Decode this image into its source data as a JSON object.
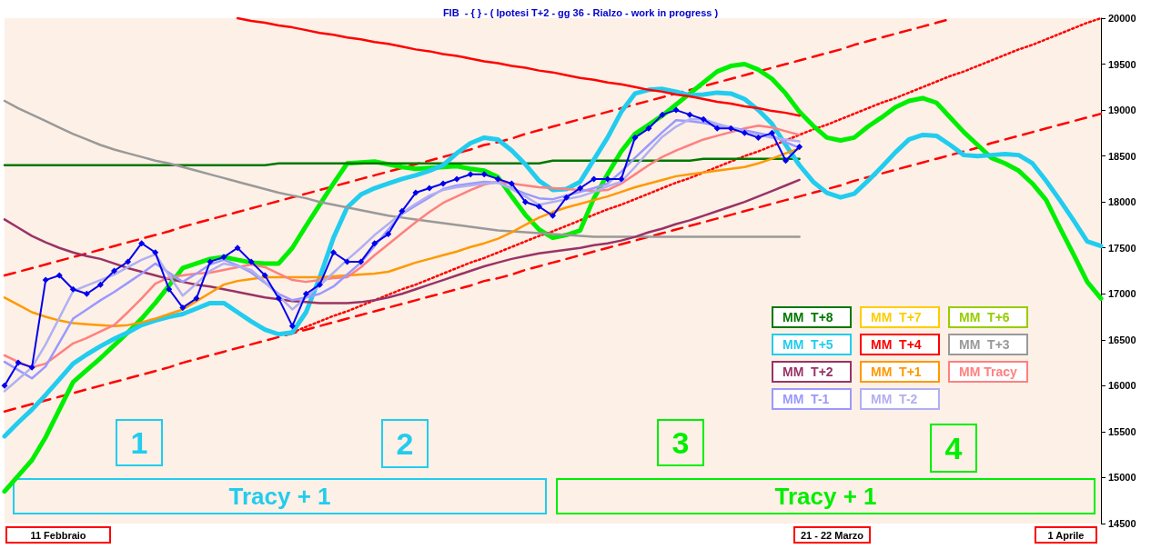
{
  "chart_data": {
    "type": "line",
    "title": "FIB  - { } - ( Ipotesi T+2 - gg 36 - Rialzo - work in progress )",
    "categories": [
      null,
      null,
      null,
      null,
      null,
      null,
      null,
      null,
      null,
      null,
      null,
      null,
      null,
      null,
      null,
      null,
      null,
      null,
      null,
      null,
      null,
      null,
      null,
      null,
      null,
      null,
      null,
      null,
      null,
      null,
      null,
      null,
      null,
      null,
      null,
      null,
      null,
      null,
      null,
      null,
      null,
      null,
      null,
      null,
      null,
      null,
      null,
      null,
      null,
      null,
      null,
      null,
      null,
      null,
      null,
      null,
      null,
      null,
      null,
      null,
      null,
      null,
      null,
      null,
      null,
      null,
      null,
      null,
      null,
      null,
      null,
      null,
      null,
      null,
      null,
      null,
      null,
      null,
      null,
      null,
      null
    ],
    "ylim": [
      14500,
      20000
    ],
    "yticks": [
      14500,
      15000,
      15500,
      16000,
      16500,
      17000,
      17500,
      18000,
      18500,
      19000,
      19500,
      20000
    ],
    "grid": false,
    "legend": "bottom right",
    "marker": "none",
    "line_style": "solid",
    "series": [
      {
        "color": "#0000ee",
        "marker": "diamond",
        "values": [
          16000,
          16250,
          16200,
          17150,
          17200,
          17050,
          17000,
          17100,
          17250,
          17350,
          17550,
          17450,
          17050,
          16850,
          16950,
          17350,
          17400,
          17500,
          17350,
          17200,
          16950,
          16650,
          17000,
          17100,
          17450,
          17350,
          17350,
          17550,
          17650,
          17900,
          18100,
          18150,
          18200,
          18250,
          18300,
          18300,
          18250,
          18200,
          18000,
          17950,
          17850,
          18050,
          18150,
          18250,
          18250,
          18250,
          18700,
          18800,
          18950,
          19000,
          18950,
          18900,
          18800,
          18800,
          18750,
          18700,
          18750,
          18450,
          18600,
          null,
          null,
          null,
          null,
          null,
          null,
          null,
          null,
          null,
          null,
          null,
          null,
          null,
          null,
          null,
          null,
          null,
          null,
          null,
          null,
          null,
          null
        ]
      },
      {
        "color": "#ff0000",
        "line_style": "dashed",
        "values": [
          17200,
          17240,
          17280,
          17320,
          17360,
          17400,
          17440,
          17480,
          17520,
          17560,
          17600,
          17640,
          17680,
          17730,
          17770,
          17810,
          17850,
          17890,
          17930,
          17970,
          18010,
          18050,
          18090,
          18130,
          18170,
          18210,
          18250,
          18290,
          18330,
          18370,
          18410,
          18450,
          18490,
          18530,
          18570,
          18620,
          18650,
          18690,
          18740,
          18780,
          18820,
          18860,
          18900,
          18940,
          18980,
          19020,
          19060,
          19100,
          19140,
          19180,
          19220,
          19260,
          19300,
          19340,
          19380,
          19420,
          19460,
          19500,
          19540,
          19580,
          19620,
          19660,
          19710,
          19750,
          19790,
          19830,
          19870,
          19910,
          19950,
          19990,
          null,
          null,
          null,
          null,
          null,
          null,
          null,
          null,
          null,
          null,
          null
        ]
      },
      {
        "color": "#ff0000",
        "line_style": "dashed",
        "values": [
          15720,
          15760,
          15800,
          15840,
          15880,
          15920,
          15960,
          16000,
          16040,
          16080,
          16120,
          16160,
          16200,
          16250,
          16290,
          16330,
          16370,
          16410,
          16450,
          16490,
          16530,
          16570,
          16610,
          16650,
          16690,
          16730,
          16770,
          16810,
          16850,
          16890,
          16930,
          16970,
          17010,
          17050,
          17090,
          17140,
          17170,
          17210,
          17260,
          17300,
          17340,
          17380,
          17420,
          17460,
          17500,
          17540,
          17580,
          17620,
          17660,
          17700,
          17740,
          17780,
          17820,
          17860,
          17900,
          17940,
          17980,
          18020,
          18060,
          18100,
          18140,
          18180,
          18230,
          18270,
          18310,
          18350,
          18390,
          18430,
          18470,
          18510,
          18550,
          18590,
          18640,
          18680,
          18720,
          18760,
          18800,
          18840,
          18880,
          18920,
          18960
        ]
      },
      {
        "color": "#ff0000",
        "line_style": "dotted",
        "values": [
          null,
          null,
          null,
          null,
          null,
          null,
          null,
          null,
          null,
          null,
          null,
          null,
          null,
          null,
          null,
          null,
          null,
          null,
          null,
          null,
          null,
          16580,
          16640,
          16700,
          16760,
          16810,
          16870,
          16930,
          16990,
          17050,
          17100,
          17160,
          17220,
          17280,
          17340,
          17390,
          17450,
          17510,
          17570,
          17630,
          17680,
          17740,
          17800,
          17860,
          17920,
          17970,
          18030,
          18090,
          18150,
          18210,
          18260,
          18320,
          18380,
          18440,
          18500,
          18550,
          18610,
          18670,
          18730,
          18790,
          18840,
          18900,
          18960,
          19020,
          19080,
          19130,
          19190,
          19250,
          19310,
          19370,
          19420,
          19480,
          19540,
          19600,
          19660,
          19710,
          19770,
          19830,
          19890,
          19950,
          20000
        ]
      },
      {
        "color": "#00ee00",
        "values": [
          14850,
          15020,
          15190,
          15440,
          15740,
          16040,
          16170,
          16300,
          16440,
          16580,
          16730,
          16900,
          17090,
          17280,
          17330,
          17380,
          17400,
          17370,
          17340,
          17330,
          17330,
          17500,
          17740,
          17970,
          18200,
          18420,
          18430,
          18440,
          18410,
          18380,
          18360,
          18370,
          18380,
          18390,
          18360,
          18340,
          18270,
          18060,
          17860,
          17700,
          17610,
          17640,
          17690,
          18040,
          18300,
          18550,
          18740,
          18840,
          18940,
          19060,
          19180,
          19300,
          19420,
          19480,
          19500,
          19440,
          19340,
          19180,
          18980,
          18830,
          18700,
          18670,
          18700,
          18820,
          18920,
          19030,
          19100,
          19130,
          19080,
          18920,
          18760,
          18620,
          18480,
          18420,
          18340,
          18200,
          18020,
          17720,
          17430,
          17130,
          16950
        ]
      },
      {
        "name": "MM  T+8",
        "color": "#007700",
        "values": [
          18400,
          18400,
          18400,
          18400,
          18400,
          18400,
          18400,
          18400,
          18400,
          18400,
          18400,
          18400,
          18400,
          18400,
          18400,
          18400,
          18400,
          18400,
          18400,
          18400,
          18420,
          18420,
          18420,
          18420,
          18420,
          18420,
          18420,
          18420,
          18420,
          18420,
          18420,
          18420,
          18420,
          18420,
          18420,
          18420,
          18420,
          18420,
          18420,
          18420,
          18450,
          18450,
          18450,
          18450,
          18450,
          18450,
          18450,
          18450,
          18450,
          18450,
          18450,
          18470,
          18470,
          18470,
          18470,
          18470,
          18470,
          18470,
          18470,
          null,
          null,
          null,
          null,
          null,
          null,
          null,
          null,
          null,
          null,
          null,
          null,
          null,
          null,
          null,
          null,
          null,
          null,
          null,
          null,
          null,
          null
        ]
      },
      {
        "name": "MM  T+7",
        "color": "#ffcc00",
        "values": [
          null,
          null,
          null,
          null,
          null,
          null,
          null,
          null,
          null,
          null,
          null,
          null,
          null,
          null,
          null,
          null,
          null,
          null,
          null,
          null,
          null,
          null,
          null,
          null,
          null,
          null,
          null,
          null,
          null,
          null,
          null,
          null,
          null,
          null,
          null,
          null,
          null,
          null,
          null,
          null,
          null,
          null,
          null,
          null,
          null,
          null,
          null,
          null,
          null,
          null,
          null,
          null,
          null,
          null,
          null,
          null,
          null,
          null,
          null,
          null,
          null,
          null,
          null,
          null,
          null,
          null,
          null,
          null,
          null,
          null,
          null,
          null,
          null,
          null,
          null,
          null,
          null,
          null,
          null,
          null,
          null
        ]
      },
      {
        "name": "MM  T+6",
        "color": "#99cc00",
        "values": [
          null,
          null,
          null,
          null,
          null,
          null,
          null,
          null,
          null,
          null,
          null,
          null,
          null,
          null,
          null,
          null,
          null,
          null,
          null,
          null,
          null,
          null,
          null,
          null,
          null,
          null,
          null,
          null,
          null,
          null,
          null,
          null,
          null,
          null,
          null,
          null,
          null,
          null,
          null,
          null,
          null,
          null,
          null,
          null,
          null,
          null,
          null,
          null,
          null,
          null,
          null,
          null,
          null,
          null,
          null,
          null,
          null,
          null,
          null,
          null,
          null,
          null,
          null,
          null,
          null,
          null,
          null,
          null,
          null,
          null,
          null,
          null,
          null,
          null,
          null,
          null,
          null,
          null,
          null,
          null,
          null
        ]
      },
      {
        "name": "MM  T+5",
        "color": "#22ccee",
        "values": [
          15450,
          15600,
          15740,
          15900,
          16070,
          16240,
          16340,
          16430,
          16510,
          16580,
          16660,
          16710,
          16750,
          16780,
          16840,
          16900,
          16900,
          16800,
          16700,
          16610,
          16560,
          16580,
          16800,
          17180,
          17610,
          17940,
          18080,
          18150,
          18200,
          18250,
          18290,
          18340,
          18400,
          18530,
          18640,
          18700,
          18680,
          18560,
          18410,
          18230,
          18130,
          18140,
          18220,
          18460,
          18700,
          18980,
          19180,
          19220,
          19230,
          19200,
          19160,
          19170,
          19190,
          19180,
          19120,
          19000,
          18850,
          18620,
          18400,
          18220,
          18100,
          18050,
          18090,
          18230,
          18380,
          18540,
          18680,
          18730,
          18720,
          18620,
          18510,
          18500,
          18510,
          18520,
          18510,
          18420,
          18230,
          18020,
          17800,
          17570,
          17520
        ]
      },
      {
        "name": "MM  T+4",
        "color": "#ff0000",
        "values": [
          null,
          null,
          null,
          null,
          null,
          null,
          null,
          null,
          null,
          null,
          null,
          null,
          null,
          null,
          null,
          null,
          null,
          20000,
          19970,
          19950,
          19920,
          19900,
          19870,
          19840,
          19820,
          19790,
          19770,
          19740,
          19720,
          19690,
          19660,
          19640,
          19610,
          19590,
          19560,
          19530,
          19510,
          19480,
          19460,
          19430,
          19410,
          19380,
          19350,
          19330,
          19300,
          19280,
          19250,
          19220,
          19200,
          19170,
          19150,
          19120,
          19090,
          19070,
          19040,
          19020,
          18990,
          18970,
          18940,
          null,
          null,
          null,
          null,
          null,
          null,
          null,
          null,
          null,
          null,
          null,
          null,
          null,
          null,
          null,
          null,
          null,
          null,
          null,
          null,
          null,
          null
        ]
      },
      {
        "name": "MM  T+3",
        "color": "#999999",
        "values": [
          19100,
          19020,
          18950,
          18880,
          18810,
          18740,
          18680,
          18620,
          18570,
          18530,
          18490,
          18450,
          18420,
          18380,
          18340,
          18300,
          18260,
          18220,
          18180,
          18140,
          18100,
          18070,
          18040,
          18000,
          17970,
          17940,
          17910,
          17880,
          17850,
          17830,
          17810,
          17790,
          17770,
          17750,
          17730,
          17710,
          17690,
          17680,
          17670,
          17660,
          17650,
          17640,
          17630,
          17620,
          17620,
          17620,
          17620,
          17620,
          17620,
          17620,
          17620,
          17620,
          17620,
          17620,
          17620,
          17620,
          17620,
          17620,
          17620,
          null,
          null,
          null,
          null,
          null,
          null,
          null,
          null,
          null,
          null,
          null,
          null,
          null,
          null,
          null,
          null,
          null,
          null,
          null,
          null,
          null,
          null
        ]
      },
      {
        "name": "MM  T+2",
        "color": "#993366",
        "values": [
          17810,
          17720,
          17630,
          17560,
          17500,
          17450,
          17410,
          17380,
          17330,
          17280,
          17240,
          17200,
          17160,
          17130,
          17100,
          17080,
          17050,
          17020,
          16990,
          16960,
          16940,
          16920,
          16910,
          16900,
          16900,
          16900,
          16910,
          16930,
          16960,
          17000,
          17050,
          17100,
          17150,
          17200,
          17250,
          17300,
          17340,
          17380,
          17410,
          17440,
          17460,
          17480,
          17500,
          17530,
          17550,
          17580,
          17620,
          17670,
          17710,
          17760,
          17800,
          17850,
          17900,
          17950,
          18000,
          18060,
          18120,
          18180,
          18240,
          null,
          null,
          null,
          null,
          null,
          null,
          null,
          null,
          null,
          null,
          null,
          null,
          null,
          null,
          null,
          null,
          null,
          null,
          null,
          null,
          null,
          null
        ]
      },
      {
        "name": "MM  T+1",
        "color": "#ff9900",
        "values": [
          16960,
          16880,
          16800,
          16750,
          16710,
          16680,
          16670,
          16660,
          16650,
          16660,
          16690,
          16730,
          16780,
          16830,
          16920,
          17010,
          17100,
          17140,
          17160,
          17180,
          17180,
          17180,
          17180,
          17180,
          17190,
          17200,
          17210,
          17220,
          17240,
          17290,
          17340,
          17380,
          17420,
          17460,
          17510,
          17550,
          17600,
          17670,
          17750,
          17830,
          17890,
          17940,
          17980,
          18020,
          18060,
          18110,
          18160,
          18200,
          18240,
          18280,
          18300,
          18320,
          18340,
          18360,
          18380,
          18420,
          18470,
          18530,
          18580,
          null,
          null,
          null,
          null,
          null,
          null,
          null,
          null,
          null,
          null,
          null,
          null,
          null,
          null,
          null,
          null,
          null,
          null,
          null,
          null,
          null,
          null
        ]
      },
      {
        "name": "MM Tracy",
        "color": "#ff8080",
        "values": [
          16330,
          16260,
          16200,
          16240,
          16350,
          16460,
          16520,
          16590,
          16660,
          16800,
          16950,
          17110,
          17180,
          17200,
          17220,
          17230,
          17260,
          17290,
          17320,
          17290,
          17220,
          17150,
          17130,
          17150,
          17170,
          17180,
          17290,
          17420,
          17540,
          17660,
          17780,
          17890,
          17990,
          18060,
          18130,
          18190,
          18220,
          18200,
          18180,
          18160,
          18150,
          18140,
          18130,
          18120,
          18130,
          18200,
          18300,
          18400,
          18490,
          18560,
          18620,
          18680,
          18720,
          18760,
          18800,
          18830,
          18810,
          18770,
          18730,
          null,
          null,
          null,
          null,
          null,
          null,
          null,
          null,
          null,
          null,
          null,
          null,
          null,
          null,
          null,
          null,
          null,
          null,
          null,
          null,
          null,
          null
        ]
      },
      {
        "name": "MM  T-1",
        "color": "#9999ff",
        "values": [
          16260,
          16170,
          16080,
          16210,
          16470,
          16730,
          16830,
          16930,
          17020,
          17120,
          17220,
          17330,
          17230,
          17130,
          17220,
          17320,
          17370,
          17310,
          17230,
          17120,
          17000,
          16930,
          16960,
          17000,
          17080,
          17210,
          17340,
          17520,
          17700,
          17870,
          17960,
          18050,
          18140,
          18180,
          18200,
          18220,
          18210,
          18150,
          18090,
          18040,
          18030,
          18070,
          18110,
          18150,
          18200,
          18330,
          18480,
          18620,
          18760,
          18890,
          18880,
          18860,
          18830,
          18810,
          18780,
          18750,
          18720,
          18650,
          18590,
          null,
          null,
          null,
          null,
          null,
          null,
          null,
          null,
          null,
          null,
          null,
          null,
          null,
          null,
          null,
          null,
          null,
          null,
          null,
          null,
          null,
          null
        ]
      },
      {
        "name": "MM  T-2",
        "color": "#b0b0f2",
        "values": [
          15940,
          16070,
          16200,
          16450,
          16740,
          17030,
          17090,
          17150,
          17210,
          17290,
          17370,
          17430,
          17200,
          16980,
          17110,
          17250,
          17330,
          17300,
          17260,
          17130,
          16980,
          16830,
          16960,
          17090,
          17230,
          17370,
          17500,
          17640,
          17760,
          17880,
          17980,
          18070,
          18130,
          18160,
          18180,
          18200,
          18210,
          18140,
          18060,
          17970,
          18000,
          18030,
          18060,
          18110,
          18170,
          18220,
          18380,
          18550,
          18710,
          18820,
          18900,
          18900,
          18850,
          18810,
          18760,
          18730,
          18700,
          18680,
          18660,
          null,
          null,
          null,
          null,
          null,
          null,
          null,
          null,
          null,
          null,
          null,
          null,
          null,
          null,
          null,
          null,
          null,
          null,
          null,
          null,
          null,
          null
        ]
      }
    ],
    "annotations": [
      "1",
      "2",
      "3",
      "4",
      "Tracy + 1",
      "Tracy + 1",
      "11 Febbraio",
      "21 - 22 Marzo",
      "1 Aprile"
    ]
  }
}
